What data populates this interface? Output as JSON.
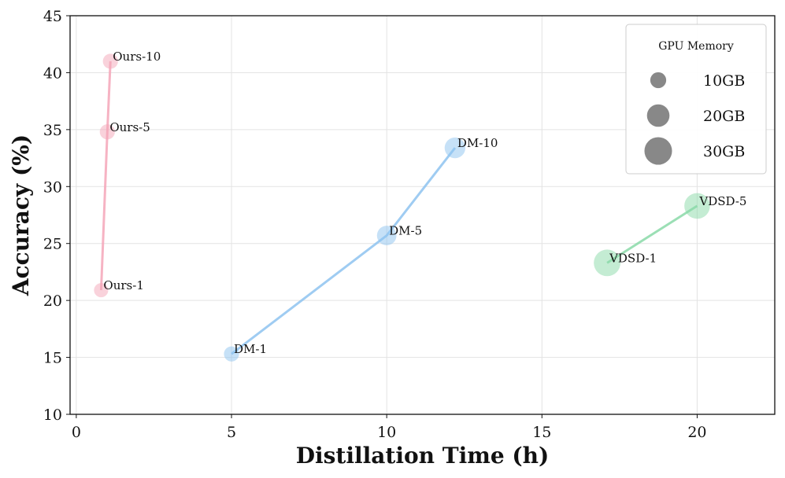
{
  "chart_data": {
    "type": "scatter",
    "xlabel": "Distillation Time (h)",
    "ylabel": "Accuracy (%)",
    "xlim": [
      -0.2,
      22.5
    ],
    "ylim": [
      10,
      45
    ],
    "xticks": [
      0,
      5,
      10,
      15,
      20
    ],
    "yticks": [
      10,
      15,
      20,
      25,
      30,
      35,
      40,
      45
    ],
    "grid": true,
    "series": [
      {
        "color": "#f4a6b8",
        "points": [
          {
            "label": "Ours-1",
            "x": 0.8,
            "y": 20.9,
            "memory_gb": 8
          },
          {
            "label": "Ours-5",
            "x": 1.0,
            "y": 34.8,
            "memory_gb": 9
          },
          {
            "label": "Ours-10",
            "x": 1.1,
            "y": 41.0,
            "memory_gb": 9
          }
        ]
      },
      {
        "color": "#8ec3f0",
        "points": [
          {
            "label": "DM-1",
            "x": 5.0,
            "y": 15.3,
            "memory_gb": 9
          },
          {
            "label": "DM-5",
            "x": 10.0,
            "y": 25.7,
            "memory_gb": 15
          },
          {
            "label": "DM-10",
            "x": 12.2,
            "y": 33.4,
            "memory_gb": 17
          }
        ]
      },
      {
        "color": "#8ad9a8",
        "points": [
          {
            "label": "VDSD-1",
            "x": 17.1,
            "y": 23.3,
            "memory_gb": 28
          },
          {
            "label": "VDSD-5",
            "x": 20.0,
            "y": 28.3,
            "memory_gb": 26
          }
        ]
      }
    ],
    "legend": {
      "title": "GPU Memory",
      "position": "top-right",
      "marker_color": "#888888",
      "entries": [
        {
          "label": "10GB",
          "memory_gb": 10
        },
        {
          "label": "20GB",
          "memory_gb": 20
        },
        {
          "label": "30GB",
          "memory_gb": 30
        }
      ]
    }
  }
}
